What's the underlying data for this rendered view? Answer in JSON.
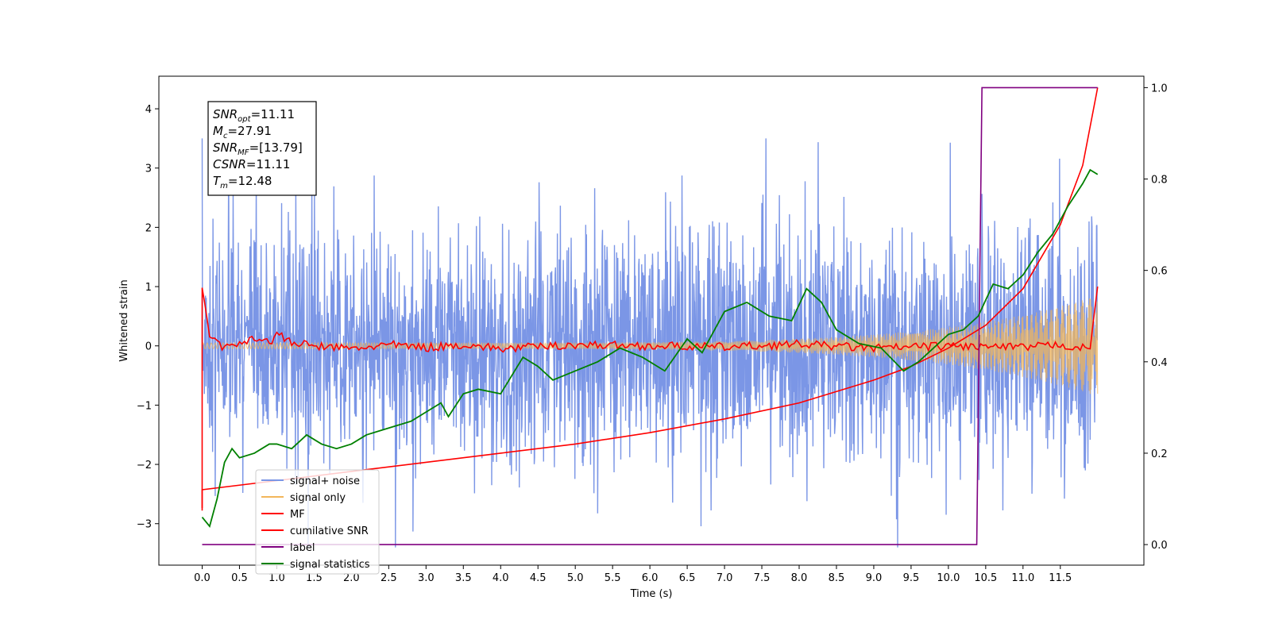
{
  "chart_data": {
    "type": "line",
    "xlabel": "Time (s)",
    "ylabel": "Whitened strain",
    "xlim": [
      -0.58,
      12.62
    ],
    "ylim": [
      -3.7,
      4.55
    ],
    "y2lim": [
      -0.045,
      1.025
    ],
    "x_ticks": [
      "0.0",
      "0.5",
      "1.0",
      "1.5",
      "2.0",
      "2.5",
      "3.0",
      "3.5",
      "4.0",
      "4.5",
      "5.0",
      "5.5",
      "6.0",
      "6.5",
      "7.0",
      "7.5",
      "8.0",
      "8.5",
      "9.0",
      "9.5",
      "10.0",
      "10.5",
      "11.0",
      "11.5"
    ],
    "y_ticks": [
      "−3",
      "−2",
      "−1",
      "0",
      "1",
      "2",
      "3",
      "4"
    ],
    "y2_ticks": [
      "0.0",
      "0.2",
      "0.4",
      "0.6",
      "0.8",
      "1.0"
    ],
    "annotation": {
      "lines": [
        {
          "base": "SNR",
          "sub": "opt",
          "rest": "=11.11"
        },
        {
          "base": "M",
          "sub": "c",
          "rest": "=27.91"
        },
        {
          "base": "SNR",
          "sub": "MF",
          "rest": "=[13.79]"
        },
        {
          "base": "CSNR",
          "sub": "",
          "rest": "=11.11"
        },
        {
          "base": "T",
          "sub": "m",
          "rest": "=12.48"
        }
      ]
    },
    "legend": {
      "placement": "lower-left",
      "entries": [
        {
          "label": "signal+ noise",
          "color": "#7b96e6"
        },
        {
          "label": "signal only",
          "color": "#f2b65a"
        },
        {
          "label": "MF",
          "color": "#ff0000"
        },
        {
          "label": "cumilative SNR",
          "color": "#ff0000"
        },
        {
          "label": "label",
          "color": "#800080"
        },
        {
          "label": "signal statistics",
          "color": "#008000"
        }
      ]
    },
    "series": [
      {
        "name": "signal+ noise",
        "axis": "left",
        "color": "#7b96e6",
        "style": "noise band",
        "x_range": [
          0,
          12.0
        ],
        "std": 0.95
      },
      {
        "name": "signal only",
        "axis": "left",
        "color": "#f2b65a",
        "style": "chirp",
        "x_range": [
          0,
          12.0
        ],
        "amplitude_start": 0.05,
        "amplitude_end": 0.85
      },
      {
        "name": "MF",
        "axis": "left",
        "color": "#ff0000",
        "x": [
          0.0,
          0.05,
          0.1,
          0.2,
          0.3,
          0.5,
          0.7,
          0.9,
          1.0,
          1.2,
          1.5,
          2.0,
          2.5,
          3.0,
          3.5,
          4.0,
          5.0,
          6.0,
          7.0,
          8.0,
          9.0,
          10.0,
          11.0,
          11.5,
          11.9,
          11.95,
          12.0
        ],
        "y": [
          0.98,
          0.6,
          0.15,
          0.1,
          -0.05,
          0.05,
          0.15,
          0.05,
          0.2,
          0.05,
          0.0,
          -0.05,
          0.02,
          -0.03,
          0.02,
          -0.05,
          0.02,
          0.0,
          -0.02,
          0.03,
          -0.04,
          0.0,
          -0.03,
          0.02,
          -0.05,
          0.5,
          1.0
        ]
      },
      {
        "name": "cumilative SNR",
        "axis": "right",
        "color": "#ff0000",
        "x": [
          0.0,
          0.0,
          1.0,
          2.0,
          3.0,
          4.0,
          5.0,
          6.0,
          7.0,
          8.0,
          8.5,
          9.0,
          9.5,
          10.0,
          10.5,
          11.0,
          11.5,
          11.8,
          12.0
        ],
        "y": [
          0.08,
          0.12,
          0.14,
          0.16,
          0.18,
          0.2,
          0.22,
          0.245,
          0.275,
          0.31,
          0.335,
          0.36,
          0.39,
          0.43,
          0.48,
          0.56,
          0.7,
          0.83,
          1.0
        ]
      },
      {
        "name": "label",
        "axis": "right",
        "color": "#800080",
        "x": [
          0.0,
          10.38,
          10.45,
          12.0
        ],
        "y": [
          0.0,
          0.0,
          1.0,
          1.0
        ]
      },
      {
        "name": "signal statistics",
        "axis": "right",
        "color": "#008000",
        "x": [
          0.0,
          0.1,
          0.2,
          0.3,
          0.4,
          0.5,
          0.7,
          0.9,
          1.0,
          1.2,
          1.4,
          1.6,
          1.8,
          2.0,
          2.2,
          2.4,
          2.6,
          2.8,
          3.0,
          3.2,
          3.3,
          3.5,
          3.7,
          4.0,
          4.3,
          4.5,
          4.7,
          5.0,
          5.3,
          5.6,
          5.9,
          6.2,
          6.5,
          6.7,
          7.0,
          7.3,
          7.6,
          7.9,
          8.1,
          8.3,
          8.5,
          8.8,
          9.1,
          9.4,
          9.6,
          9.8,
          10.0,
          10.2,
          10.4,
          10.6,
          10.8,
          11.0,
          11.2,
          11.4,
          11.6,
          11.8,
          11.9,
          12.0
        ],
        "y": [
          0.06,
          0.04,
          0.1,
          0.18,
          0.21,
          0.19,
          0.2,
          0.22,
          0.22,
          0.21,
          0.24,
          0.22,
          0.21,
          0.22,
          0.24,
          0.25,
          0.26,
          0.27,
          0.29,
          0.31,
          0.28,
          0.33,
          0.34,
          0.33,
          0.41,
          0.39,
          0.36,
          0.38,
          0.4,
          0.43,
          0.41,
          0.38,
          0.45,
          0.42,
          0.51,
          0.53,
          0.5,
          0.49,
          0.56,
          0.53,
          0.47,
          0.44,
          0.43,
          0.38,
          0.4,
          0.43,
          0.46,
          0.47,
          0.5,
          0.57,
          0.56,
          0.59,
          0.64,
          0.68,
          0.74,
          0.79,
          0.82,
          0.81
        ]
      }
    ]
  }
}
